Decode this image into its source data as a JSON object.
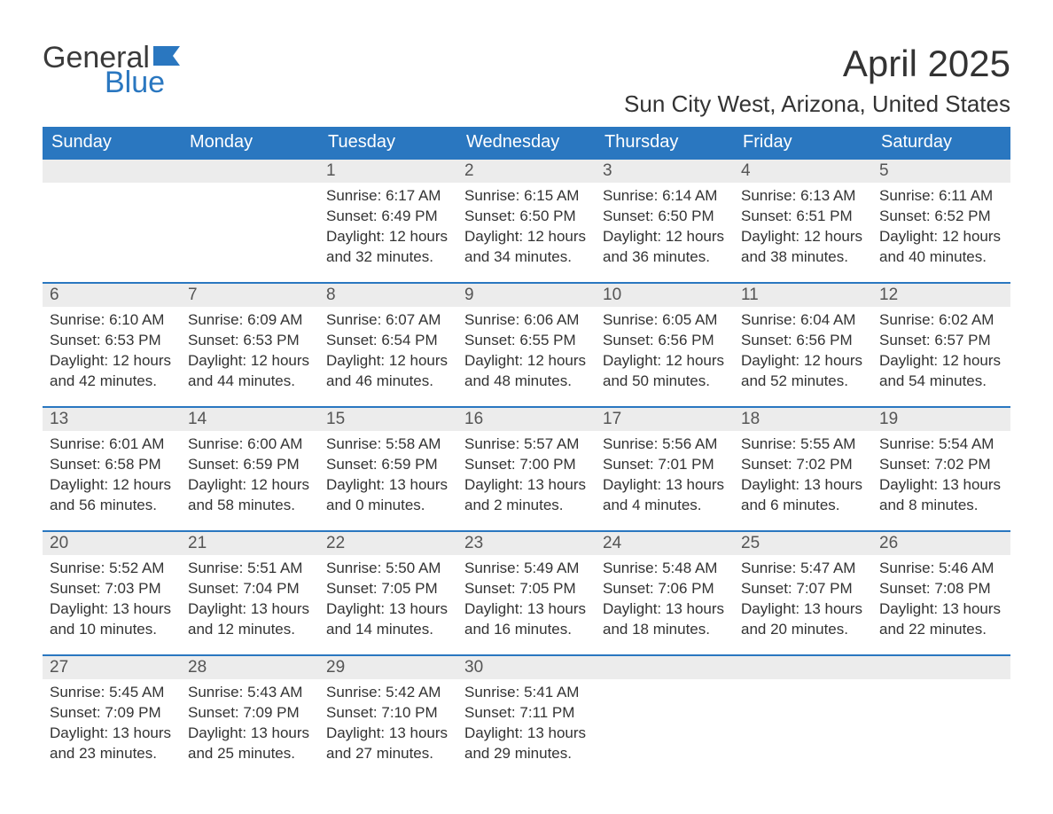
{
  "logo": {
    "text_general": "General",
    "text_blue": "Blue",
    "flag_color": "#2a77c0"
  },
  "title": {
    "month": "April 2025",
    "location": "Sun City West, Arizona, United States"
  },
  "colors": {
    "header_bg": "#2a77c0",
    "header_text": "#ffffff",
    "daynum_bg": "#ececec",
    "daynum_border": "#2a77c0",
    "body_text": "#333333",
    "background": "#ffffff"
  },
  "typography": {
    "month_fontsize": 42,
    "location_fontsize": 26,
    "th_fontsize": 20,
    "daynum_fontsize": 19,
    "daydata_fontsize": 17
  },
  "calendar": {
    "day_labels": [
      "Sunday",
      "Monday",
      "Tuesday",
      "Wednesday",
      "Thursday",
      "Friday",
      "Saturday"
    ],
    "leading_blanks": 2,
    "days": [
      {
        "n": 1,
        "sunrise": "6:17 AM",
        "sunset": "6:49 PM",
        "daylight": "12 hours and 32 minutes."
      },
      {
        "n": 2,
        "sunrise": "6:15 AM",
        "sunset": "6:50 PM",
        "daylight": "12 hours and 34 minutes."
      },
      {
        "n": 3,
        "sunrise": "6:14 AM",
        "sunset": "6:50 PM",
        "daylight": "12 hours and 36 minutes."
      },
      {
        "n": 4,
        "sunrise": "6:13 AM",
        "sunset": "6:51 PM",
        "daylight": "12 hours and 38 minutes."
      },
      {
        "n": 5,
        "sunrise": "6:11 AM",
        "sunset": "6:52 PM",
        "daylight": "12 hours and 40 minutes."
      },
      {
        "n": 6,
        "sunrise": "6:10 AM",
        "sunset": "6:53 PM",
        "daylight": "12 hours and 42 minutes."
      },
      {
        "n": 7,
        "sunrise": "6:09 AM",
        "sunset": "6:53 PM",
        "daylight": "12 hours and 44 minutes."
      },
      {
        "n": 8,
        "sunrise": "6:07 AM",
        "sunset": "6:54 PM",
        "daylight": "12 hours and 46 minutes."
      },
      {
        "n": 9,
        "sunrise": "6:06 AM",
        "sunset": "6:55 PM",
        "daylight": "12 hours and 48 minutes."
      },
      {
        "n": 10,
        "sunrise": "6:05 AM",
        "sunset": "6:56 PM",
        "daylight": "12 hours and 50 minutes."
      },
      {
        "n": 11,
        "sunrise": "6:04 AM",
        "sunset": "6:56 PM",
        "daylight": "12 hours and 52 minutes."
      },
      {
        "n": 12,
        "sunrise": "6:02 AM",
        "sunset": "6:57 PM",
        "daylight": "12 hours and 54 minutes."
      },
      {
        "n": 13,
        "sunrise": "6:01 AM",
        "sunset": "6:58 PM",
        "daylight": "12 hours and 56 minutes."
      },
      {
        "n": 14,
        "sunrise": "6:00 AM",
        "sunset": "6:59 PM",
        "daylight": "12 hours and 58 minutes."
      },
      {
        "n": 15,
        "sunrise": "5:58 AM",
        "sunset": "6:59 PM",
        "daylight": "13 hours and 0 minutes."
      },
      {
        "n": 16,
        "sunrise": "5:57 AM",
        "sunset": "7:00 PM",
        "daylight": "13 hours and 2 minutes."
      },
      {
        "n": 17,
        "sunrise": "5:56 AM",
        "sunset": "7:01 PM",
        "daylight": "13 hours and 4 minutes."
      },
      {
        "n": 18,
        "sunrise": "5:55 AM",
        "sunset": "7:02 PM",
        "daylight": "13 hours and 6 minutes."
      },
      {
        "n": 19,
        "sunrise": "5:54 AM",
        "sunset": "7:02 PM",
        "daylight": "13 hours and 8 minutes."
      },
      {
        "n": 20,
        "sunrise": "5:52 AM",
        "sunset": "7:03 PM",
        "daylight": "13 hours and 10 minutes."
      },
      {
        "n": 21,
        "sunrise": "5:51 AM",
        "sunset": "7:04 PM",
        "daylight": "13 hours and 12 minutes."
      },
      {
        "n": 22,
        "sunrise": "5:50 AM",
        "sunset": "7:05 PM",
        "daylight": "13 hours and 14 minutes."
      },
      {
        "n": 23,
        "sunrise": "5:49 AM",
        "sunset": "7:05 PM",
        "daylight": "13 hours and 16 minutes."
      },
      {
        "n": 24,
        "sunrise": "5:48 AM",
        "sunset": "7:06 PM",
        "daylight": "13 hours and 18 minutes."
      },
      {
        "n": 25,
        "sunrise": "5:47 AM",
        "sunset": "7:07 PM",
        "daylight": "13 hours and 20 minutes."
      },
      {
        "n": 26,
        "sunrise": "5:46 AM",
        "sunset": "7:08 PM",
        "daylight": "13 hours and 22 minutes."
      },
      {
        "n": 27,
        "sunrise": "5:45 AM",
        "sunset": "7:09 PM",
        "daylight": "13 hours and 23 minutes."
      },
      {
        "n": 28,
        "sunrise": "5:43 AM",
        "sunset": "7:09 PM",
        "daylight": "13 hours and 25 minutes."
      },
      {
        "n": 29,
        "sunrise": "5:42 AM",
        "sunset": "7:10 PM",
        "daylight": "13 hours and 27 minutes."
      },
      {
        "n": 30,
        "sunrise": "5:41 AM",
        "sunset": "7:11 PM",
        "daylight": "13 hours and 29 minutes."
      }
    ],
    "labels": {
      "sunrise": "Sunrise:",
      "sunset": "Sunset:",
      "daylight": "Daylight:"
    }
  }
}
